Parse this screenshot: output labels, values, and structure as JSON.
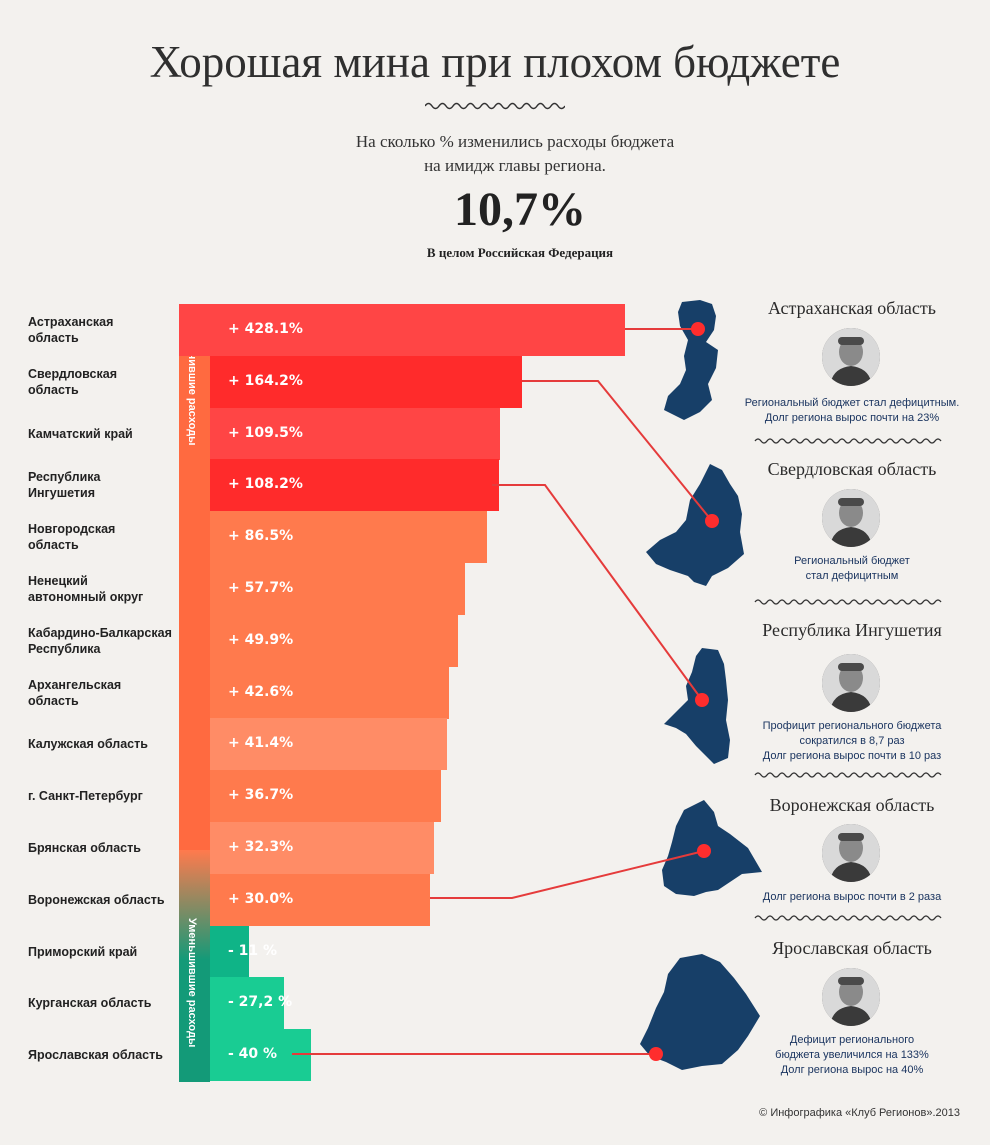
{
  "title": "Хорошая мина при плохом бюджете",
  "subtitle_line1": "На сколько % изменились расходы бюджета",
  "subtitle_line2": "на имидж главы региона.",
  "total_value_text": "10,7%",
  "total_label": "В целом Российская Федерация",
  "side_labels": {
    "increased": "Увеличившие расходы",
    "decreased": "Уменьшившие расходы"
  },
  "footer": "© Инфографика «Клуб Регионов».2013",
  "colors": {
    "strong_red": "#ff2b2b",
    "red": "#ff4545",
    "orange": "#ff7a4d",
    "light_orange": "#ff8c66",
    "dark_green": "#0fb487",
    "green": "#19cc93",
    "teal_strip": "#139a78",
    "map": "#173f68",
    "dot": "#ff2d2d",
    "connector": "#e53b3b"
  },
  "chart_data": {
    "type": "bar",
    "orientation": "horizontal",
    "categories": [
      "Астраханская область",
      "Свердловская область",
      "Камчатский край",
      "Республика Ингушетия",
      "Новгородская область",
      "Ненецкий автономный округ",
      "Кабардино-Балкарская Республика",
      "Архангельская область",
      "Калужская область",
      "г. Санкт-Петербург",
      "Брянская область",
      "Воронежская область",
      "Приморский край",
      "Курганская область",
      "Ярославская область"
    ],
    "category_lines": [
      [
        "Астраханская",
        "область"
      ],
      [
        "Свердловская",
        "область"
      ],
      [
        "Камчатский край"
      ],
      [
        "Республика",
        "Ингушетия"
      ],
      [
        "Новгородская",
        "область"
      ],
      [
        "Ненецкий",
        "автономный округ"
      ],
      [
        "Кабардино-Балкарская",
        "Республика"
      ],
      [
        "Архангельская",
        "область"
      ],
      [
        "Калужская область"
      ],
      [
        "г. Санкт-Петербург"
      ],
      [
        "Брянская область"
      ],
      [
        "Воронежская область"
      ],
      [
        "Приморский край"
      ],
      [
        "Курганская область"
      ],
      [
        "Ярославская область"
      ]
    ],
    "values": [
      428.1,
      164.2,
      109.5,
      108.2,
      86.5,
      57.7,
      49.9,
      42.6,
      41.4,
      36.7,
      32.3,
      30.0,
      -11,
      -27.2,
      -40
    ],
    "value_labels": [
      "+ 428.1%",
      "+ 164.2%",
      "+ 109.5%",
      "+ 108.2%",
      "+ 86.5%",
      "+ 57.7%",
      "+ 49.9%",
      "+ 42.6%",
      "+ 41.4%",
      "+ 36.7%",
      "+ 32.3%",
      "+ 30.0%",
      "- 11 %",
      "- 27,2 %",
      "- 40 %"
    ],
    "highlighted": [
      "Астраханская область",
      "Свердловская область",
      "Республика Ингушетия",
      "Воронежская область",
      "Ярославская область"
    ]
  },
  "cards": [
    {
      "title": "Астраханская область",
      "lines": [
        "Региональный бюджет стал дефицитным.",
        "Долг региона вырос почти на 23%"
      ]
    },
    {
      "title": "Свердловская область",
      "lines": [
        "Региональный бюджет",
        "стал дефицитным"
      ]
    },
    {
      "title": "Республика Ингушетия",
      "lines": [
        "Профицит регионального бюджета",
        "сократился в 8,7 раз",
        "Долг региона вырос почти в 10 раз"
      ]
    },
    {
      "title": "Воронежская область",
      "lines": [
        "Долг региона вырос почти в 2 раза"
      ]
    },
    {
      "title": "Ярославская область",
      "lines": [
        "Дефицит регионального",
        "бюджета увеличился на 133%",
        "Долг региона вырос на 40%"
      ]
    }
  ]
}
